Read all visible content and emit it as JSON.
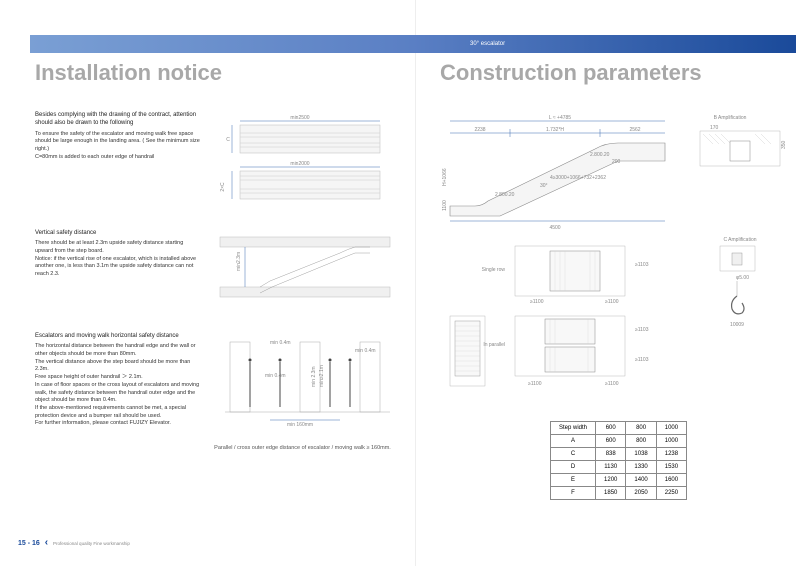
{
  "banner_label": "30°  escalator",
  "left": {
    "title": "Installation notice",
    "s1": {
      "lead": "Besides complying with the drawing of the contract, attention should also be drawn to the following",
      "body": "To ensure the safety of the escalator and moving walk free space should be large enough in the landing area. ( See the minimum size right.)\nC=80mm is added to each outer edge of handrail",
      "dim1": "min2500",
      "dim2": "min2000"
    },
    "s2": {
      "lead": "Vertical safety distance",
      "body": "There should be at least 2.3m upside safety distance starting upward from the step board.\nNotice: if the vertical rise of one escalator, which is installed above another one, is less than 3.1m the upside safety distance can not reach 2.3.",
      "dim": "min2.3m"
    },
    "s3": {
      "lead": "Escalators and moving walk horizontal safety distance",
      "body": "The horizontal distance between the handrail edge and the wall or other objects should be more than 80mm.\nThe vertical distance above the step board should be more than 2.3m.\nFree space height of outer handrail ＞ 2.1m.\nIn case of floor spaces or the cross layout of escalators and moving walk, the safety distance between the handrail outer edge and the object should be more than 0.4m.\nIf the above-mentioned requirements cannot be met, a special protection device and a bumper rail should be used.\nFor further information, please contact FUJIZY Elevator.",
      "d1": "min 0.4m",
      "d2": "min 0.4m",
      "d3": "min≥2.1m",
      "d4": "min 0.4m",
      "d5": "min 2.3m",
      "d6": "min 160mm"
    },
    "footnote": "Parallel / cross outer edge distance of escalator / moving walk ≥ 160mm."
  },
  "right": {
    "title": "Construction parameters",
    "main_dims": {
      "w": "4500",
      "h": "H+1066",
      "a": "2238",
      "b": "1.732*H",
      "c": "2562",
      "total": "L ≈ +4785",
      "ang": "30°",
      "r1": "2.800.20",
      "r2": "2.800.20",
      "formula": "4≥3000+1066+732+2362",
      "d1100": "1100"
    },
    "amp_b": "B  Amplification",
    "amp_c": "C  Amplification",
    "single": "Single row",
    "parallel": "In parallel",
    "s1100": "≥1100",
    "s1103": "≥1103",
    "hook": "10009",
    "table": {
      "header": [
        "Step width",
        "600",
        "800",
        "1000"
      ],
      "rows": [
        [
          "A",
          "600",
          "800",
          "1000"
        ],
        [
          "C",
          "838",
          "1038",
          "1238"
        ],
        [
          "D",
          "1130",
          "1330",
          "1530"
        ],
        [
          "E",
          "1200",
          "1400",
          "1600"
        ],
        [
          "F",
          "1850",
          "2050",
          "2250"
        ]
      ]
    }
  },
  "footer": {
    "pages": "15 - 16",
    "tag": "Professional quality  Fine workmanship"
  }
}
